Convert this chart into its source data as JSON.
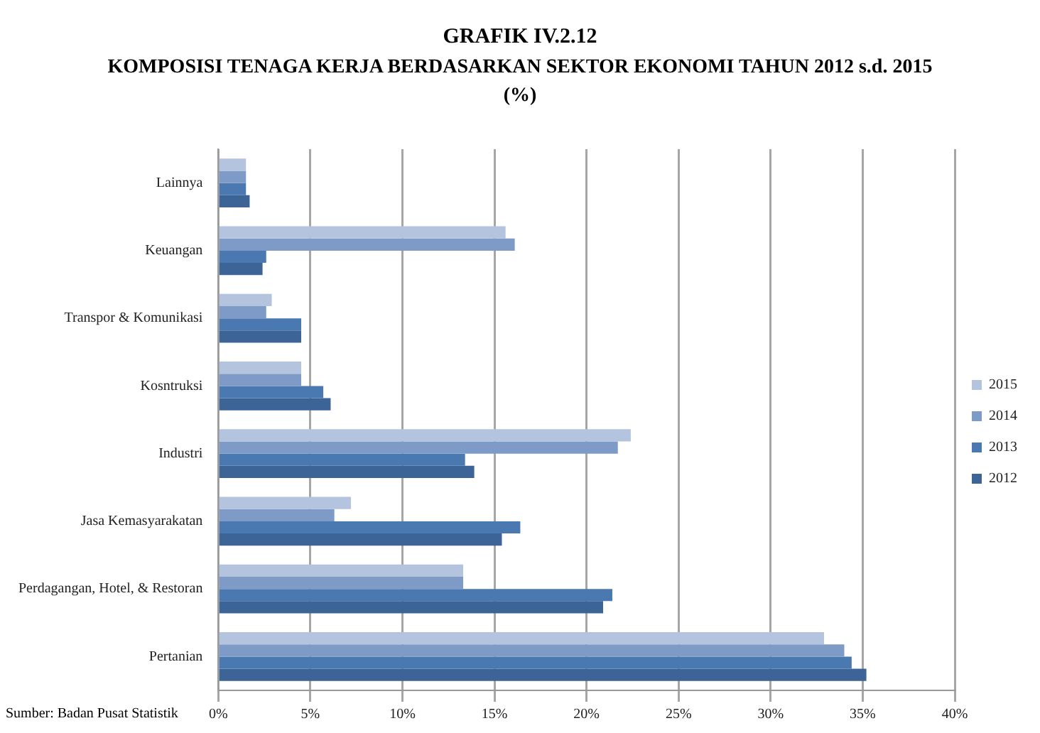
{
  "chart_data": {
    "type": "bar",
    "orientation": "horizontal",
    "title": "GRAFIK IV.2.12",
    "subtitle": "KOMPOSISI TENAGA KERJA BERDASARKAN SEKTOR EKONOMI TAHUN 2012 s.d. 2015\n(%)",
    "categories": [
      "Lainnya",
      "Keuangan",
      "Transpor & Komunikasi",
      "Kosntruksi",
      "Industri",
      "Jasa Kemasyarakatan",
      "Perdagangan, Hotel, & Restoran",
      "Pertanian"
    ],
    "series": [
      {
        "name": "2015",
        "color": "#b4c3de",
        "values": [
          1.5,
          15.6,
          2.9,
          4.5,
          22.4,
          7.2,
          13.3,
          32.9
        ]
      },
      {
        "name": "2014",
        "color": "#7e9bc8",
        "values": [
          1.5,
          16.1,
          2.6,
          4.5,
          21.7,
          6.3,
          13.3,
          34.0
        ]
      },
      {
        "name": "2013",
        "color": "#4a78b0",
        "values": [
          1.5,
          2.6,
          4.5,
          5.7,
          13.4,
          16.4,
          21.4,
          34.4
        ]
      },
      {
        "name": "2012",
        "color": "#3d6497",
        "values": [
          1.7,
          2.4,
          4.5,
          6.1,
          13.9,
          15.4,
          20.9,
          35.2
        ]
      }
    ],
    "xlim": [
      0,
      40
    ],
    "xticks": [
      {
        "value": 0,
        "label": "0%"
      },
      {
        "value": 5,
        "label": "5%"
      },
      {
        "value": 10,
        "label": "10%"
      },
      {
        "value": 15,
        "label": "15%"
      },
      {
        "value": 20,
        "label": "20%"
      },
      {
        "value": 25,
        "label": "25%"
      },
      {
        "value": 30,
        "label": "30%"
      },
      {
        "value": 35,
        "label": "35%"
      },
      {
        "value": 40,
        "label": "40%"
      }
    ],
    "grid": "x",
    "legend": "right",
    "annotations": [
      "Sumber: Badan Pusat Statistik"
    ]
  }
}
